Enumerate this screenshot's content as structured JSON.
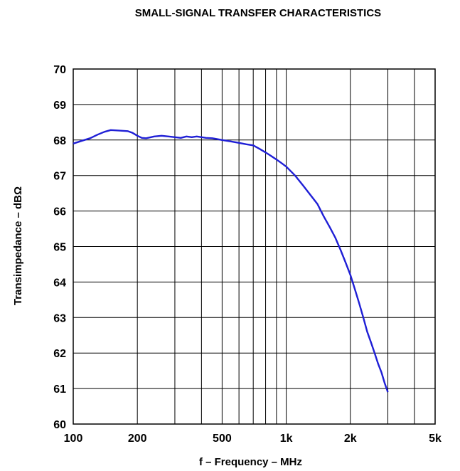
{
  "chart_data": {
    "type": "line",
    "title": "SMALL-SIGNAL TRANSFER CHARACTERISTICS",
    "xlabel": "f – Frequency – MHz",
    "ylabel": "Transimpedance – dBΩ",
    "x_scale": "log",
    "xlim": [
      100,
      5000
    ],
    "ylim": [
      60,
      70
    ],
    "x_ticks": [
      {
        "value": 100,
        "label": "100"
      },
      {
        "value": 200,
        "label": "200"
      },
      {
        "value": 500,
        "label": "500"
      },
      {
        "value": 1000,
        "label": "1k"
      },
      {
        "value": 2000,
        "label": "2k"
      },
      {
        "value": 5000,
        "label": "5k"
      }
    ],
    "y_ticks": [
      60,
      61,
      62,
      63,
      64,
      65,
      66,
      67,
      68,
      69,
      70
    ],
    "x_minor_gridlines": [
      300,
      400,
      600,
      700,
      800,
      900,
      3000,
      4000
    ],
    "grid": true,
    "series": [
      {
        "color": "#1f1fd6",
        "x": [
          100,
          110,
          120,
          130,
          140,
          150,
          160,
          170,
          180,
          190,
          200,
          210,
          220,
          240,
          260,
          280,
          300,
          320,
          340,
          360,
          380,
          400,
          420,
          450,
          480,
          500,
          550,
          600,
          650,
          700,
          750,
          800,
          850,
          900,
          950,
          1000,
          1100,
          1200,
          1300,
          1400,
          1500,
          1600,
          1700,
          1800,
          1900,
          2000,
          2100,
          2200,
          2300,
          2400,
          2500,
          2600,
          2700,
          2800,
          2900,
          3000
        ],
        "y": [
          67.9,
          67.98,
          68.05,
          68.15,
          68.23,
          68.28,
          68.27,
          68.26,
          68.25,
          68.2,
          68.12,
          68.06,
          68.05,
          68.1,
          68.12,
          68.1,
          68.08,
          68.06,
          68.1,
          68.08,
          68.1,
          68.08,
          68.06,
          68.05,
          68.02,
          68.0,
          67.96,
          67.92,
          67.88,
          67.85,
          67.75,
          67.65,
          67.55,
          67.45,
          67.35,
          67.25,
          67.0,
          66.72,
          66.45,
          66.2,
          65.85,
          65.55,
          65.25,
          64.9,
          64.55,
          64.2,
          63.8,
          63.4,
          63.0,
          62.6,
          62.3,
          62.0,
          61.7,
          61.45,
          61.15,
          60.9
        ]
      }
    ]
  }
}
